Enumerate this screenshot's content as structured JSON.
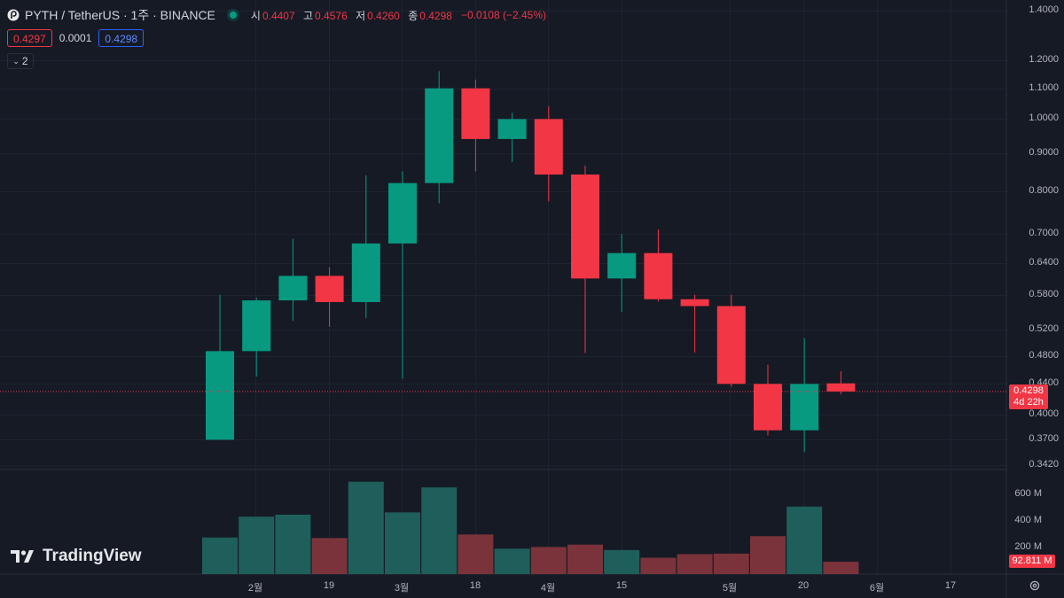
{
  "header": {
    "title": "PYTH / TetherUS · 1주 · BINANCE",
    "open_label": "시",
    "open_value": "0.4407",
    "high_label": "고",
    "high_value": "0.4576",
    "low_label": "저",
    "low_value": "0.4260",
    "close_label": "종",
    "close_value": "0.4298",
    "change": "−0.0108 (−2.45%)"
  },
  "trade": {
    "sell_price": "0.4297",
    "spread": "0.0001",
    "buy_price": "0.4298"
  },
  "indicators_collapse": {
    "count": "2"
  },
  "price_axis": {
    "labels": [
      "1.4000",
      "1.2000",
      "1.1000",
      "1.0000",
      "0.9000",
      "0.8000",
      "0.7000",
      "0.6400",
      "0.5800",
      "0.5200",
      "0.4800",
      "0.4400",
      "0.4000",
      "0.3700",
      "0.3420"
    ],
    "current_price": "0.4298",
    "countdown": "4d 22h"
  },
  "volume_axis": {
    "labels": [
      "600 M",
      "400 M",
      "200 M"
    ],
    "current_volume": "92.811 M"
  },
  "time_axis": {
    "labels": [
      "2월",
      "19",
      "3월",
      "18",
      "4월",
      "15",
      "5월",
      "20",
      "6월",
      "17"
    ]
  },
  "watermark": "TradingView",
  "colors": {
    "up": "#089981",
    "down": "#f23645",
    "background": "#161a25"
  },
  "chart_data": {
    "type": "candlestick",
    "interval": "1 week",
    "y_scale": "log",
    "ylim": [
      0.342,
      1.4
    ],
    "candles": [
      {
        "o": 0.37,
        "h": 0.58,
        "l": 0.37,
        "c": 0.487
      },
      {
        "o": 0.487,
        "h": 0.575,
        "l": 0.45,
        "c": 0.57
      },
      {
        "o": 0.57,
        "h": 0.69,
        "l": 0.535,
        "c": 0.615
      },
      {
        "o": 0.615,
        "h": 0.632,
        "l": 0.525,
        "c": 0.567
      },
      {
        "o": 0.567,
        "h": 0.84,
        "l": 0.54,
        "c": 0.68
      },
      {
        "o": 0.68,
        "h": 0.85,
        "l": 0.447,
        "c": 0.82
      },
      {
        "o": 0.82,
        "h": 1.16,
        "l": 0.77,
        "c": 1.1
      },
      {
        "o": 1.1,
        "h": 1.13,
        "l": 0.85,
        "c": 0.94
      },
      {
        "o": 0.94,
        "h": 1.02,
        "l": 0.875,
        "c": 1.0
      },
      {
        "o": 1.0,
        "h": 1.04,
        "l": 0.775,
        "c": 0.842
      },
      {
        "o": 0.842,
        "h": 0.865,
        "l": 0.484,
        "c": 0.61
      },
      {
        "o": 0.61,
        "h": 0.7,
        "l": 0.55,
        "c": 0.66
      },
      {
        "o": 0.66,
        "h": 0.71,
        "l": 0.568,
        "c": 0.572
      },
      {
        "o": 0.572,
        "h": 0.58,
        "l": 0.485,
        "c": 0.56
      },
      {
        "o": 0.56,
        "h": 0.58,
        "l": 0.436,
        "c": 0.44
      },
      {
        "o": 0.44,
        "h": 0.467,
        "l": 0.375,
        "c": 0.381
      },
      {
        "o": 0.381,
        "h": 0.507,
        "l": 0.356,
        "c": 0.44
      },
      {
        "o": 0.4407,
        "h": 0.4576,
        "l": 0.426,
        "c": 0.4298
      }
    ],
    "volumes_M": [
      275,
      432,
      447,
      271,
      695,
      464,
      652,
      298,
      191,
      204,
      222,
      181,
      123,
      150,
      154,
      285,
      508,
      93
    ]
  }
}
